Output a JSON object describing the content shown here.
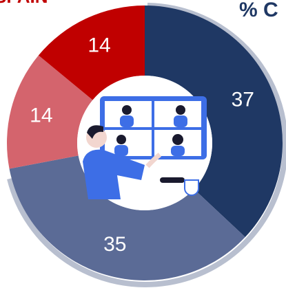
{
  "chart_data": {
    "type": "pie",
    "annotations": [
      "SPAIN",
      "% C"
    ],
    "values": [
      37,
      35,
      14,
      14
    ],
    "colors": [
      "#1f3864",
      "#5b6b96",
      "#d4646d",
      "#c00000"
    ]
  }
}
